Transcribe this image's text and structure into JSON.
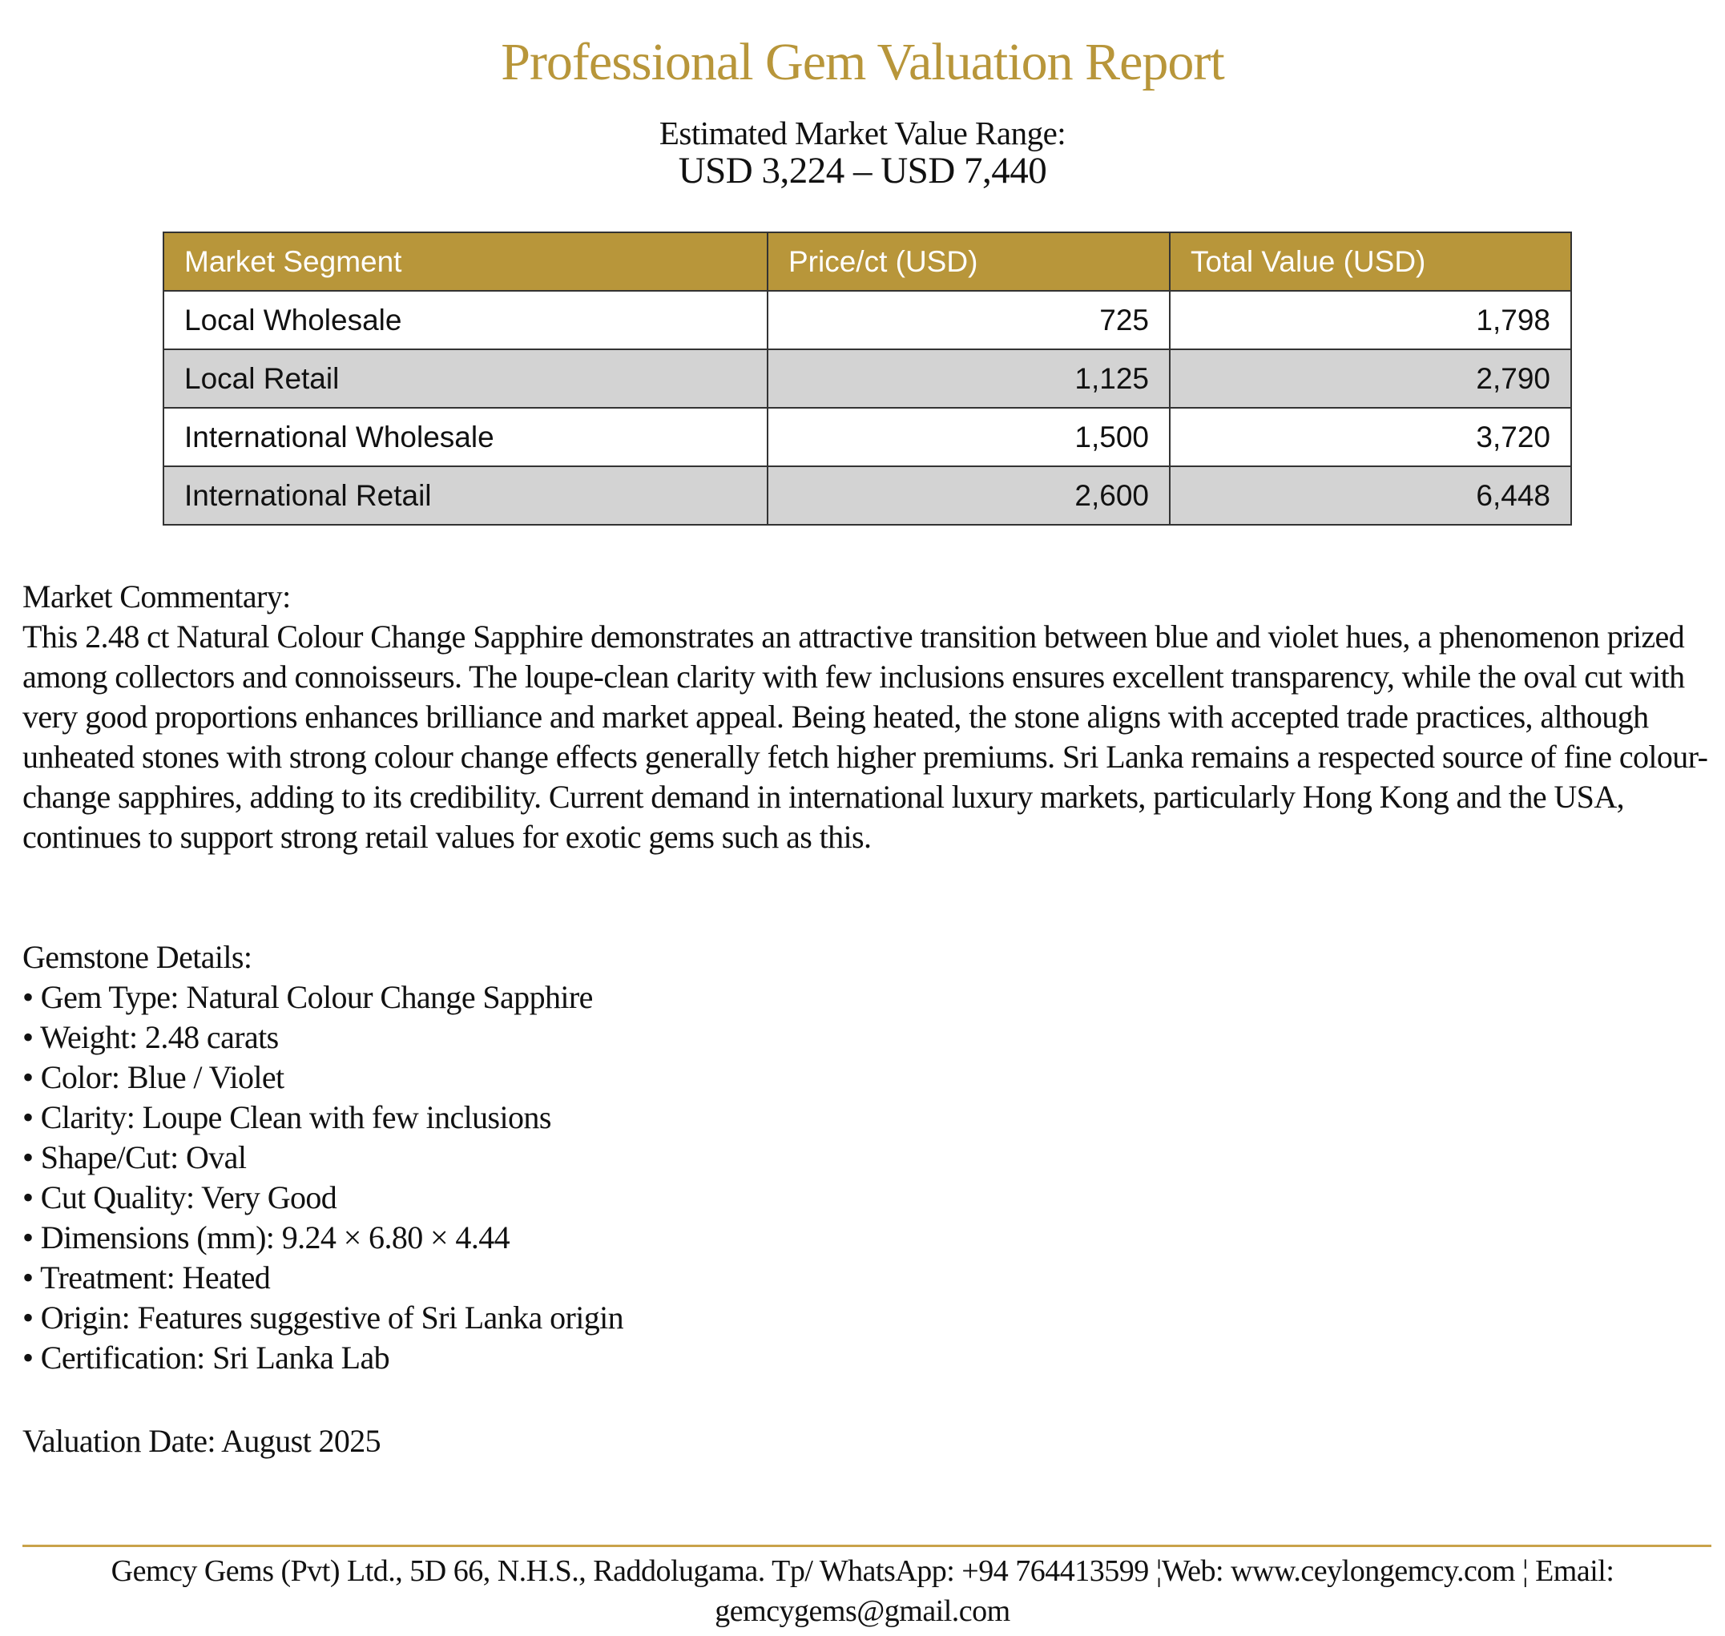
{
  "header": {
    "title": "Professional Gem Valuation Report",
    "subtitle": "Estimated Market Value Range:",
    "range": "USD 3,224 – USD 7,440"
  },
  "table": {
    "columns": [
      "Market Segment",
      "Price/ct (USD)",
      "Total Value (USD)"
    ],
    "rows": [
      [
        "Local Wholesale",
        "725",
        "1,798"
      ],
      [
        "Local Retail",
        "1,125",
        "2,790"
      ],
      [
        "International Wholesale",
        "1,500",
        "3,720"
      ],
      [
        "International Retail",
        "2,600",
        "6,448"
      ]
    ]
  },
  "commentary": {
    "heading": "Market Commentary:",
    "text": "This 2.48 ct Natural Colour Change Sapphire demonstrates an attractive transition between blue and violet hues, a phenomenon prized among collectors and connoisseurs. The loupe-clean clarity with few inclusions ensures excellent transparency, while the oval cut with very good proportions enhances brilliance and market appeal. Being heated, the stone aligns with accepted trade practices, although unheated stones with strong colour change effects generally fetch higher premiums. Sri Lanka remains a respected source of fine colour-change sapphires, adding to its credibility. Current demand in international luxury markets, particularly Hong Kong and the USA, continues to support strong retail values for exotic gems such as this."
  },
  "details": {
    "heading": "Gemstone Details:",
    "items": [
      "• Gem Type: Natural Colour Change Sapphire",
      "• Weight: 2.48 carats",
      "• Color: Blue / Violet",
      "• Clarity: Loupe Clean with few inclusions",
      "• Shape/Cut: Oval",
      "• Cut Quality: Very Good",
      "• Dimensions (mm): 9.24 × 6.80 × 4.44",
      "• Treatment: Heated",
      "• Origin: Features suggestive of Sri Lanka origin",
      "• Certification: Sri Lanka Lab"
    ]
  },
  "valuation_date": "Valuation Date: August 2025",
  "footer": {
    "text": "Gemcy Gems (Pvt) Ltd., 5D 66, N.H.S., Raddolugama. Tp/ WhatsApp: +94 764413599 ¦Web: www.ceylongemcy.com ¦ Email: gemcygems@gmail.com"
  }
}
